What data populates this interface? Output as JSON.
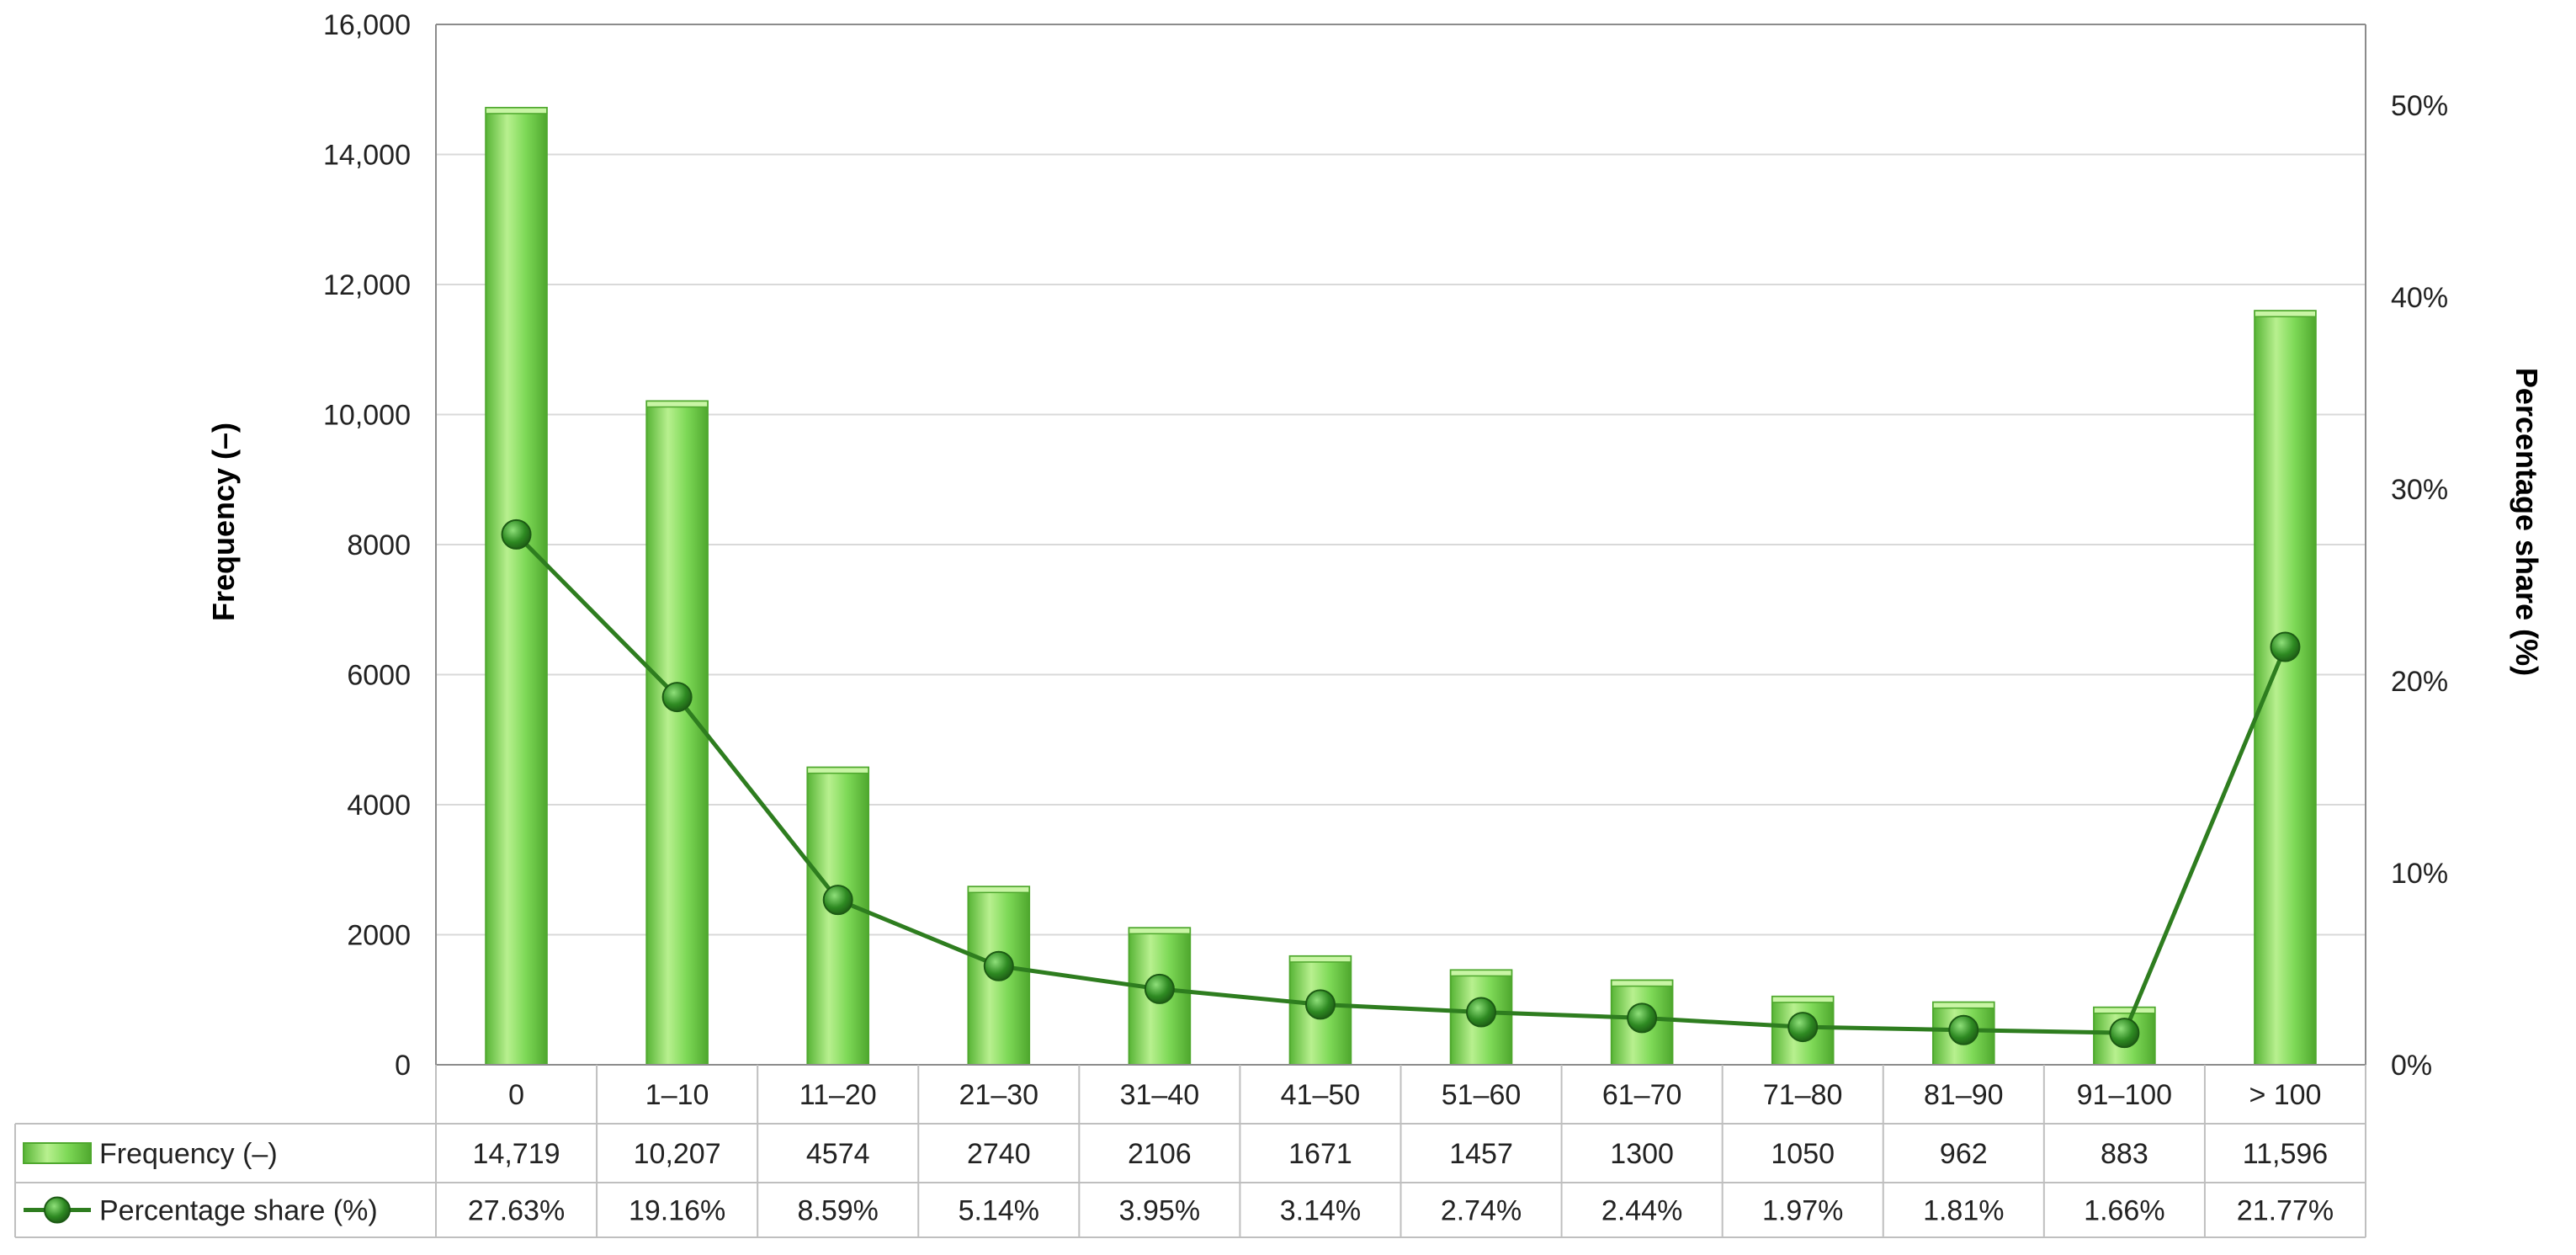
{
  "chart_data": {
    "type": "bar",
    "categories": [
      "0",
      "1–10",
      "11–20",
      "21–30",
      "31–40",
      "41–50",
      "51–60",
      "61–70",
      "71–80",
      "81–90",
      "91–100",
      "> 100"
    ],
    "series": [
      {
        "name": "Frequency (–)",
        "type": "bar",
        "axis": "left",
        "values": [
          14719,
          10207,
          4574,
          2740,
          2106,
          1671,
          1457,
          1300,
          1050,
          962,
          883,
          11596
        ],
        "labels": [
          "14,719",
          "10,207",
          "4574",
          "2740",
          "2106",
          "1671",
          "1457",
          "1300",
          "1050",
          "962",
          "883",
          "11,596"
        ]
      },
      {
        "name": "Percentage share (%)",
        "type": "line",
        "axis": "right",
        "values": [
          27.63,
          19.16,
          8.59,
          5.14,
          3.95,
          3.14,
          2.74,
          2.44,
          1.97,
          1.81,
          1.66,
          21.77
        ],
        "labels": [
          "27.63%",
          "19.16%",
          "8.59%",
          "5.14%",
          "3.95%",
          "3.14%",
          "2.74%",
          "2.44%",
          "1.97%",
          "1.81%",
          "1.66%",
          "21.77%"
        ]
      }
    ],
    "ylabel": "Frequency (–)",
    "y2label": "Percentage share (%)",
    "ylim": [
      0,
      16000
    ],
    "y2lim": [
      0,
      54.2
    ],
    "yticks": [
      0,
      2000,
      4000,
      6000,
      8000,
      10000,
      12000,
      14000,
      16000
    ],
    "ytick_labels": [
      "0",
      "2000",
      "4000",
      "6000",
      "8000",
      "10,000",
      "12,000",
      "14,000",
      "16,000"
    ],
    "y2ticks": [
      0,
      10,
      20,
      30,
      40,
      50
    ],
    "y2tick_labels": [
      "0%",
      "10%",
      "20%",
      "30%",
      "40%",
      "50%"
    ],
    "grid": true,
    "data_table": true,
    "colors": {
      "bar_fill": "#7ed957",
      "bar_light": "#b8f08f",
      "bar_dark": "#4fa82e",
      "line": "#2e7d1f",
      "marker": "#2e7d1f",
      "grid": "#d9d9d9",
      "frame": "#8c8c8c"
    }
  }
}
